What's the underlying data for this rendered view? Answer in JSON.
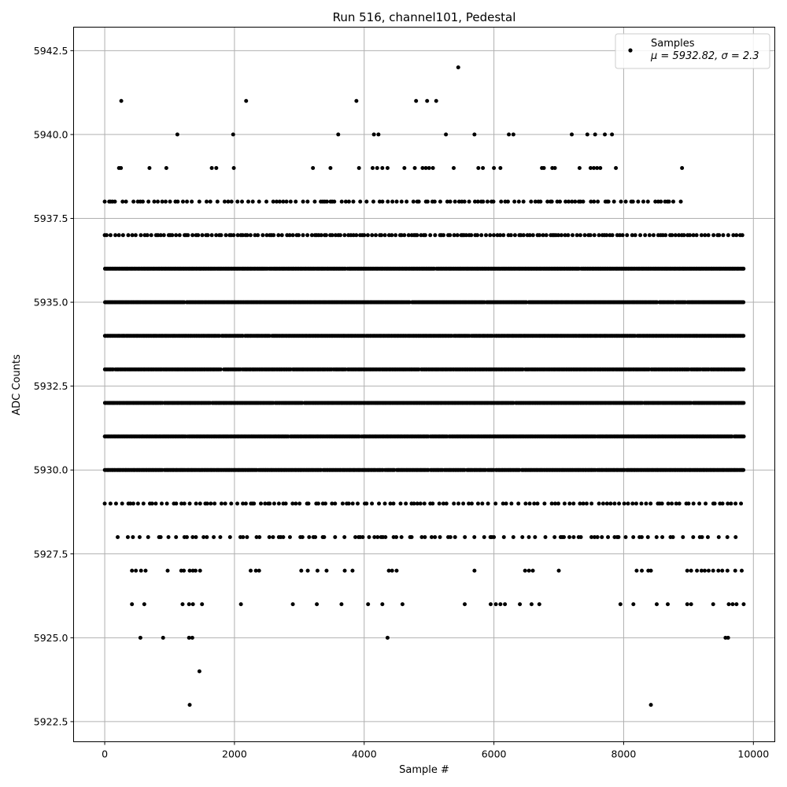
{
  "chart_data": {
    "type": "scatter",
    "title": "Run 516, channel101, Pedestal",
    "xlabel": "Sample #",
    "ylabel": "ADC Counts",
    "xlim": [
      -480,
      10330
    ],
    "ylim": [
      5921.9,
      5943.2
    ],
    "xticks": [
      0,
      2000,
      4000,
      6000,
      8000,
      10000
    ],
    "xtick_labels": [
      "0",
      "2000",
      "4000",
      "6000",
      "8000",
      "10000"
    ],
    "yticks": [
      5922.5,
      5925.0,
      5927.5,
      5930.0,
      5932.5,
      5935.0,
      5937.5,
      5940.0,
      5942.5
    ],
    "ytick_labels": [
      "5922.5",
      "5925.0",
      "5927.5",
      "5930.0",
      "5932.5",
      "5935.0",
      "5937.5",
      "5940.0",
      "5942.5"
    ],
    "grid": true,
    "marker_color": "#000000",
    "legend": {
      "placement": "top-right",
      "series_label": "Samples",
      "stats_label": "μ = 5932.82, σ = 2.3"
    },
    "series": [
      {
        "name": "Samples",
        "dense_levels": [
          5930,
          5931,
          5932,
          5933,
          5934,
          5935,
          5936
        ],
        "sparse_levels": [
          {
            "y": 5937,
            "x_ranges": [
              [
                0,
                9850
              ]
            ]
          },
          {
            "y": 5938,
            "x_ranges": [
              [
                0,
                8900
              ]
            ]
          },
          {
            "y": 5929,
            "x_ranges": [
              [
                0,
                9850
              ]
            ]
          },
          {
            "y": 5928,
            "x_ranges": [
              [
                200,
                9850
              ]
            ]
          }
        ],
        "points": [
          {
            "x": 255,
            "y": 5941
          },
          {
            "x": 2180,
            "y": 5941
          },
          {
            "x": 3880,
            "y": 5941
          },
          {
            "x": 4800,
            "y": 5941
          },
          {
            "x": 4970,
            "y": 5941
          },
          {
            "x": 5110,
            "y": 5941
          },
          {
            "x": 5450,
            "y": 5942
          },
          {
            "x": 1120,
            "y": 5940
          },
          {
            "x": 1980,
            "y": 5940
          },
          {
            "x": 3600,
            "y": 5940
          },
          {
            "x": 4150,
            "y": 5940
          },
          {
            "x": 4220,
            "y": 5940
          },
          {
            "x": 5260,
            "y": 5940
          },
          {
            "x": 5700,
            "y": 5940
          },
          {
            "x": 6230,
            "y": 5940
          },
          {
            "x": 6300,
            "y": 5940
          },
          {
            "x": 7200,
            "y": 5940
          },
          {
            "x": 7440,
            "y": 5940
          },
          {
            "x": 7560,
            "y": 5940
          },
          {
            "x": 7710,
            "y": 5940
          },
          {
            "x": 7820,
            "y": 5940
          },
          {
            "x": 220,
            "y": 5939
          },
          {
            "x": 250,
            "y": 5939
          },
          {
            "x": 690,
            "y": 5939
          },
          {
            "x": 950,
            "y": 5939
          },
          {
            "x": 1650,
            "y": 5939
          },
          {
            "x": 1720,
            "y": 5939
          },
          {
            "x": 1990,
            "y": 5939
          },
          {
            "x": 3210,
            "y": 5939
          },
          {
            "x": 3480,
            "y": 5939
          },
          {
            "x": 3920,
            "y": 5939
          },
          {
            "x": 4130,
            "y": 5939
          },
          {
            "x": 4200,
            "y": 5939
          },
          {
            "x": 4280,
            "y": 5939
          },
          {
            "x": 4360,
            "y": 5939
          },
          {
            "x": 4620,
            "y": 5939
          },
          {
            "x": 4780,
            "y": 5939
          },
          {
            "x": 4900,
            "y": 5939
          },
          {
            "x": 4950,
            "y": 5939
          },
          {
            "x": 5000,
            "y": 5939
          },
          {
            "x": 5060,
            "y": 5939
          },
          {
            "x": 5380,
            "y": 5939
          },
          {
            "x": 5760,
            "y": 5939
          },
          {
            "x": 5830,
            "y": 5939
          },
          {
            "x": 6000,
            "y": 5939
          },
          {
            "x": 6100,
            "y": 5939
          },
          {
            "x": 6740,
            "y": 5939
          },
          {
            "x": 6770,
            "y": 5939
          },
          {
            "x": 6900,
            "y": 5939
          },
          {
            "x": 6940,
            "y": 5939
          },
          {
            "x": 7320,
            "y": 5939
          },
          {
            "x": 7490,
            "y": 5939
          },
          {
            "x": 7540,
            "y": 5939
          },
          {
            "x": 7590,
            "y": 5939
          },
          {
            "x": 7640,
            "y": 5939
          },
          {
            "x": 7880,
            "y": 5939
          },
          {
            "x": 8900,
            "y": 5939
          },
          {
            "x": 420,
            "y": 5927
          },
          {
            "x": 480,
            "y": 5927
          },
          {
            "x": 560,
            "y": 5927
          },
          {
            "x": 630,
            "y": 5927
          },
          {
            "x": 970,
            "y": 5927
          },
          {
            "x": 1180,
            "y": 5927
          },
          {
            "x": 1220,
            "y": 5927
          },
          {
            "x": 1310,
            "y": 5927
          },
          {
            "x": 1360,
            "y": 5927
          },
          {
            "x": 1400,
            "y": 5927
          },
          {
            "x": 1470,
            "y": 5927
          },
          {
            "x": 2250,
            "y": 5927
          },
          {
            "x": 2330,
            "y": 5927
          },
          {
            "x": 2380,
            "y": 5927
          },
          {
            "x": 3030,
            "y": 5927
          },
          {
            "x": 3130,
            "y": 5927
          },
          {
            "x": 3280,
            "y": 5927
          },
          {
            "x": 3420,
            "y": 5927
          },
          {
            "x": 3700,
            "y": 5927
          },
          {
            "x": 3820,
            "y": 5927
          },
          {
            "x": 4380,
            "y": 5927
          },
          {
            "x": 4430,
            "y": 5927
          },
          {
            "x": 4500,
            "y": 5927
          },
          {
            "x": 5700,
            "y": 5927
          },
          {
            "x": 6480,
            "y": 5927
          },
          {
            "x": 6540,
            "y": 5927
          },
          {
            "x": 6600,
            "y": 5927
          },
          {
            "x": 7000,
            "y": 5927
          },
          {
            "x": 8200,
            "y": 5927
          },
          {
            "x": 8280,
            "y": 5927
          },
          {
            "x": 8380,
            "y": 5927
          },
          {
            "x": 8420,
            "y": 5927
          },
          {
            "x": 8980,
            "y": 5927
          },
          {
            "x": 9040,
            "y": 5927
          },
          {
            "x": 9130,
            "y": 5927
          },
          {
            "x": 9200,
            "y": 5927
          },
          {
            "x": 9250,
            "y": 5927
          },
          {
            "x": 9310,
            "y": 5927
          },
          {
            "x": 9380,
            "y": 5927
          },
          {
            "x": 9460,
            "y": 5927
          },
          {
            "x": 9520,
            "y": 5927
          },
          {
            "x": 9600,
            "y": 5927
          },
          {
            "x": 9720,
            "y": 5927
          },
          {
            "x": 9820,
            "y": 5927
          },
          {
            "x": 420,
            "y": 5926
          },
          {
            "x": 610,
            "y": 5926
          },
          {
            "x": 1200,
            "y": 5926
          },
          {
            "x": 1300,
            "y": 5926
          },
          {
            "x": 1360,
            "y": 5926
          },
          {
            "x": 1500,
            "y": 5926
          },
          {
            "x": 2100,
            "y": 5926
          },
          {
            "x": 2900,
            "y": 5926
          },
          {
            "x": 3270,
            "y": 5926
          },
          {
            "x": 3650,
            "y": 5926
          },
          {
            "x": 4060,
            "y": 5926
          },
          {
            "x": 4280,
            "y": 5926
          },
          {
            "x": 4590,
            "y": 5926
          },
          {
            "x": 5550,
            "y": 5926
          },
          {
            "x": 5950,
            "y": 5926
          },
          {
            "x": 6030,
            "y": 5926
          },
          {
            "x": 6100,
            "y": 5926
          },
          {
            "x": 6170,
            "y": 5926
          },
          {
            "x": 6400,
            "y": 5926
          },
          {
            "x": 6580,
            "y": 5926
          },
          {
            "x": 6700,
            "y": 5926
          },
          {
            "x": 7950,
            "y": 5926
          },
          {
            "x": 8150,
            "y": 5926
          },
          {
            "x": 8510,
            "y": 5926
          },
          {
            "x": 8680,
            "y": 5926
          },
          {
            "x": 8980,
            "y": 5926
          },
          {
            "x": 9040,
            "y": 5926
          },
          {
            "x": 9380,
            "y": 5926
          },
          {
            "x": 9620,
            "y": 5926
          },
          {
            "x": 9680,
            "y": 5926
          },
          {
            "x": 9740,
            "y": 5926
          },
          {
            "x": 9850,
            "y": 5926
          },
          {
            "x": 550,
            "y": 5925
          },
          {
            "x": 900,
            "y": 5925
          },
          {
            "x": 1300,
            "y": 5925
          },
          {
            "x": 1350,
            "y": 5925
          },
          {
            "x": 4360,
            "y": 5925
          },
          {
            "x": 9570,
            "y": 5925
          },
          {
            "x": 9610,
            "y": 5925
          },
          {
            "x": 1460,
            "y": 5924
          },
          {
            "x": 1310,
            "y": 5923
          },
          {
            "x": 8420,
            "y": 5923
          }
        ]
      }
    ]
  }
}
